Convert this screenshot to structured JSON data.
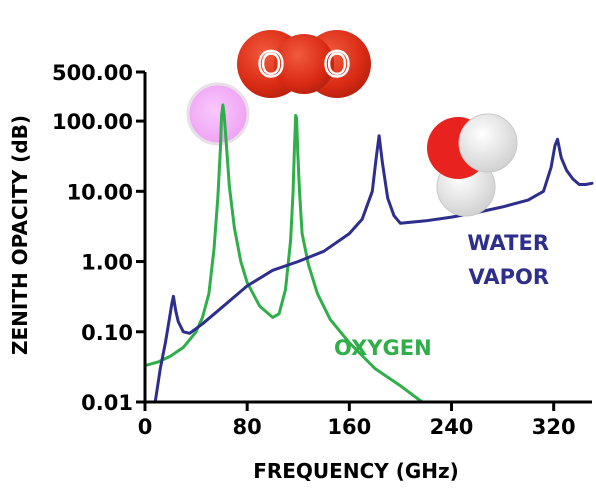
{
  "chart_data": {
    "type": "line",
    "xlabel": "FREQUENCY (GHz)",
    "ylabel": "ZENITH OPACITY (dB)",
    "xlim": [
      0,
      350
    ],
    "ylim": [
      0.01,
      500
    ],
    "yscale": "log",
    "xticks": [
      0,
      80,
      160,
      240,
      320
    ],
    "xtick_labels": [
      "0",
      "80",
      "160",
      "240",
      "320"
    ],
    "yticks": [
      0.01,
      0.1,
      1,
      10,
      100,
      500
    ],
    "ytick_labels": [
      "0.01",
      "0.10",
      "1.00",
      "10.00",
      "100.00",
      "500.00"
    ],
    "grid": false,
    "legend": "inline labels",
    "series": [
      {
        "name": "OXYGEN",
        "label_lines": [
          "OXYGEN"
        ],
        "color": "#2fae4a",
        "points": [
          [
            0,
            0.033
          ],
          [
            10,
            0.037
          ],
          [
            20,
            0.045
          ],
          [
            30,
            0.06
          ],
          [
            40,
            0.1
          ],
          [
            45,
            0.16
          ],
          [
            50,
            0.35
          ],
          [
            54,
            1.5
          ],
          [
            57,
            8
          ],
          [
            59,
            40
          ],
          [
            60,
            120
          ],
          [
            61,
            170
          ],
          [
            62,
            120
          ],
          [
            64,
            40
          ],
          [
            66,
            12
          ],
          [
            70,
            3
          ],
          [
            75,
            1.0
          ],
          [
            80,
            0.5
          ],
          [
            90,
            0.23
          ],
          [
            100,
            0.16
          ],
          [
            105,
            0.18
          ],
          [
            110,
            0.4
          ],
          [
            114,
            2.0
          ],
          [
            116,
            10
          ],
          [
            117,
            40
          ],
          [
            118,
            120
          ],
          [
            118.7,
            110
          ],
          [
            119.5,
            40
          ],
          [
            121,
            10
          ],
          [
            123,
            2.5
          ],
          [
            128,
            0.9
          ],
          [
            135,
            0.35
          ],
          [
            145,
            0.15
          ],
          [
            160,
            0.07
          ],
          [
            180,
            0.03
          ],
          [
            200,
            0.017
          ],
          [
            217,
            0.01
          ]
        ]
      },
      {
        "name": "WATER VAPOR",
        "label_lines": [
          "WATER",
          "VAPOR"
        ],
        "color": "#2e2e8c",
        "points": [
          [
            8,
            0.01
          ],
          [
            12,
            0.03
          ],
          [
            16,
            0.07
          ],
          [
            19,
            0.15
          ],
          [
            21,
            0.25
          ],
          [
            22.2,
            0.32
          ],
          [
            24,
            0.2
          ],
          [
            26,
            0.14
          ],
          [
            30,
            0.1
          ],
          [
            35,
            0.095
          ],
          [
            45,
            0.13
          ],
          [
            60,
            0.22
          ],
          [
            80,
            0.45
          ],
          [
            100,
            0.75
          ],
          [
            120,
            1.0
          ],
          [
            140,
            1.4
          ],
          [
            160,
            2.5
          ],
          [
            170,
            4.0
          ],
          [
            178,
            10
          ],
          [
            181,
            30
          ],
          [
            183.3,
            62
          ],
          [
            186,
            25
          ],
          [
            190,
            8
          ],
          [
            195,
            4.5
          ],
          [
            200,
            3.5
          ],
          [
            220,
            3.8
          ],
          [
            240,
            4.3
          ],
          [
            260,
            5.0
          ],
          [
            280,
            6.0
          ],
          [
            300,
            7.5
          ],
          [
            312,
            10
          ],
          [
            318,
            22
          ],
          [
            321,
            45
          ],
          [
            323,
            55
          ],
          [
            326,
            30
          ],
          [
            330,
            20
          ],
          [
            335,
            15
          ],
          [
            340,
            12.5
          ],
          [
            345,
            12.5
          ],
          [
            350,
            13
          ]
        ]
      }
    ]
  },
  "icons": {
    "oxygen_molecule": "O2-molecule-icon",
    "oxygen_molecule_letters": [
      "O",
      "O"
    ],
    "water_molecule": "H2O-molecule-icon",
    "peak_marker": "pink-circle-marker"
  },
  "colors": {
    "oxygen": "#2fae4a",
    "water": "#2e2e8c",
    "oxygen_atom": "#dc2b16",
    "water_oxygen_atom": "#e8231f",
    "hydrogen_atom": "#e6e6e6",
    "marker": "#f3b4f6"
  }
}
